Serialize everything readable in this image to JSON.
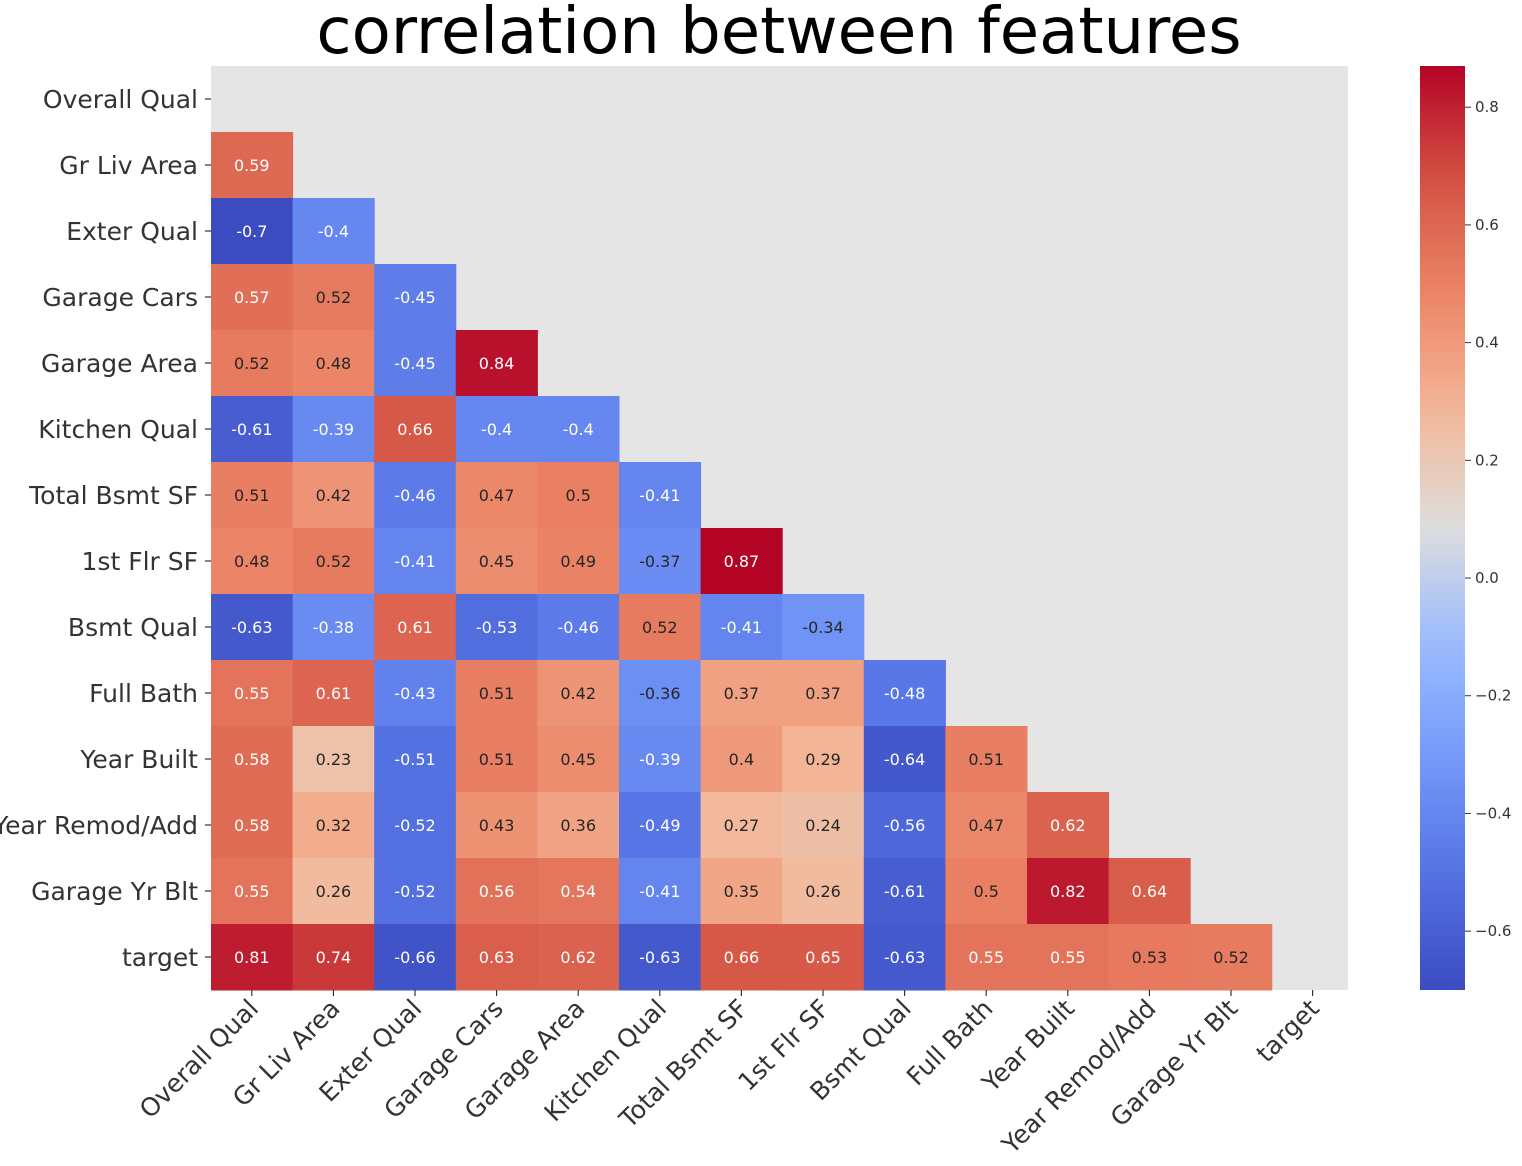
{
  "chart_data": {
    "type": "heatmap",
    "title": "correlation between features",
    "labels": [
      "Overall Qual",
      "Gr Liv Area",
      "Exter Qual",
      "Garage Cars",
      "Garage Area",
      "Kitchen Qual",
      "Total Bsmt SF",
      "1st Flr SF",
      "Bsmt Qual",
      "Full Bath",
      "Year Built",
      "Year Remod/Add",
      "Garage Yr Blt",
      "target"
    ],
    "mask": "upper-triangle-and-diagonal",
    "matrix": [
      [],
      [
        0.59
      ],
      [
        -0.7,
        -0.4
      ],
      [
        0.57,
        0.52,
        -0.45
      ],
      [
        0.52,
        0.48,
        -0.45,
        0.84
      ],
      [
        -0.61,
        -0.39,
        0.66,
        -0.4,
        -0.4
      ],
      [
        0.51,
        0.42,
        -0.46,
        0.47,
        0.5,
        -0.41
      ],
      [
        0.48,
        0.52,
        -0.41,
        0.45,
        0.49,
        -0.37,
        0.87
      ],
      [
        -0.63,
        -0.38,
        0.61,
        -0.53,
        -0.46,
        0.52,
        -0.41,
        -0.34
      ],
      [
        0.55,
        0.61,
        -0.43,
        0.51,
        0.42,
        -0.36,
        0.37,
        0.37,
        -0.48
      ],
      [
        0.58,
        0.23,
        -0.51,
        0.51,
        0.45,
        -0.39,
        0.4,
        0.29,
        -0.64,
        0.51
      ],
      [
        0.58,
        0.32,
        -0.52,
        0.43,
        0.36,
        -0.49,
        0.27,
        0.24,
        -0.56,
        0.47,
        0.62
      ],
      [
        0.55,
        0.26,
        -0.52,
        0.56,
        0.54,
        -0.41,
        0.35,
        0.26,
        -0.61,
        0.5,
        0.82,
        0.64
      ],
      [
        0.81,
        0.74,
        -0.66,
        0.63,
        0.62,
        -0.63,
        0.66,
        0.65,
        -0.63,
        0.55,
        0.55,
        0.53,
        0.52
      ]
    ],
    "colormap": "coolwarm",
    "vmin": -0.7,
    "vmax": 0.87,
    "colorbar_ticks": [
      {
        "value": 0.8,
        "label": "0.8"
      },
      {
        "value": 0.6,
        "label": "0.6"
      },
      {
        "value": 0.4,
        "label": "0.4"
      },
      {
        "value": 0.2,
        "label": "0.2"
      },
      {
        "value": 0.0,
        "label": "0.0"
      },
      {
        "value": -0.2,
        "label": "−0.2"
      },
      {
        "value": -0.4,
        "label": "−0.4"
      },
      {
        "value": -0.6,
        "label": "−0.6"
      }
    ],
    "background_color": "#e5e5e5"
  }
}
